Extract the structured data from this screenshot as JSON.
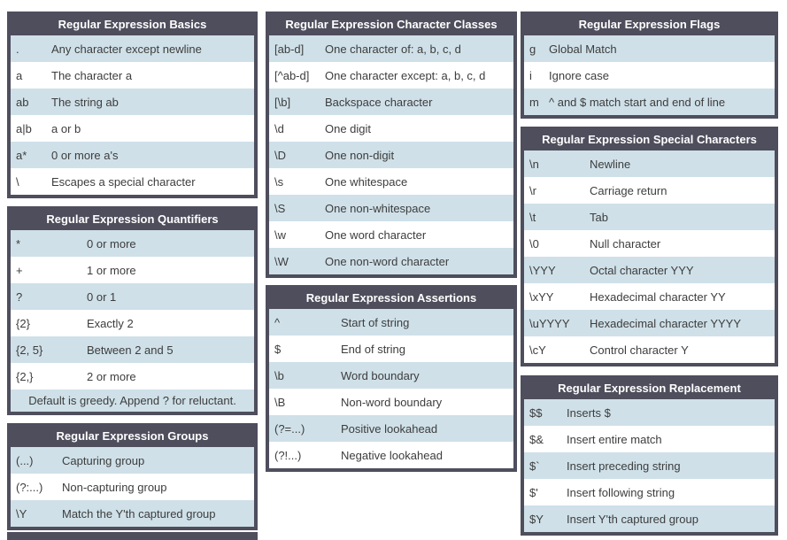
{
  "theme": {
    "header_bg": "#4e4e5d",
    "row_alt_bg": "#cfe0e8",
    "row_bg": "#ffffff",
    "cell_text": "#3d3d3d",
    "header_text": "#ffffff"
  },
  "tables": {
    "basics": {
      "title": "Regular Expression Basics",
      "rows": [
        [
          ".",
          "Any character except newline"
        ],
        [
          "a",
          "The character a"
        ],
        [
          "ab",
          "The string ab"
        ],
        [
          "a|b",
          "a or b"
        ],
        [
          "a*",
          "0 or more a's"
        ],
        [
          "\\",
          "Escapes a special character"
        ]
      ]
    },
    "quantifiers": {
      "title": "Regular Expression Quantifiers",
      "rows": [
        [
          "*",
          "0 or more"
        ],
        [
          "+",
          "1 or more"
        ],
        [
          "?",
          "0 or 1"
        ],
        [
          "{2}",
          "Exactly 2"
        ],
        [
          "{2, 5}",
          "Between 2 and 5"
        ],
        [
          "{2,}",
          "2 or more"
        ]
      ],
      "footer": "Default is greedy. Append ? for reluctant."
    },
    "groups": {
      "title": "Regular Expression Groups",
      "rows": [
        [
          "(...)",
          "Capturing group"
        ],
        [
          "(?:...)",
          "Non-capturing group"
        ],
        [
          "\\Y",
          "Match the Y'th captured group"
        ]
      ]
    },
    "char_classes": {
      "title": "Regular Expression Character Classes",
      "rows": [
        [
          "[ab-d]",
          "One character of: a, b, c, d"
        ],
        [
          "[^ab-d]",
          "One character except: a, b, c, d"
        ],
        [
          "[\\b]",
          "Backspace character"
        ],
        [
          "\\d",
          "One digit"
        ],
        [
          "\\D",
          "One non-digit"
        ],
        [
          "\\s",
          "One whitespace"
        ],
        [
          "\\S",
          "One non-whitespace"
        ],
        [
          "\\w",
          "One word character"
        ],
        [
          "\\W",
          "One non-word character"
        ]
      ]
    },
    "assertions": {
      "title": "Regular Expression Assertions",
      "rows": [
        [
          "^",
          "Start of string"
        ],
        [
          "$",
          "End of string"
        ],
        [
          "\\b",
          "Word boundary"
        ],
        [
          "\\B",
          "Non-word boundary"
        ],
        [
          "(?=...)",
          "Positive lookahead"
        ],
        [
          "(?!...)",
          "Negative lookahead"
        ]
      ]
    },
    "flags": {
      "title": "Regular Expression Flags",
      "rows": [
        [
          "g",
          "Global Match"
        ],
        [
          "i",
          "Ignore case"
        ],
        [
          "m",
          "^ and $ match start and end of line"
        ]
      ]
    },
    "special_chars": {
      "title": "Regular Expression Special Characters",
      "rows": [
        [
          "\\n",
          "Newline"
        ],
        [
          "\\r",
          "Carriage return"
        ],
        [
          "\\t",
          "Tab"
        ],
        [
          "\\0",
          "Null character"
        ],
        [
          "\\YYY",
          "Octal character YYY"
        ],
        [
          "\\xYY",
          "Hexadecimal character YY"
        ],
        [
          "\\uYYYY",
          "Hexadecimal character YYYY"
        ],
        [
          "\\cY",
          "Control character Y"
        ]
      ]
    },
    "replacement": {
      "title": "Regular Expression Replacement",
      "rows": [
        [
          "$$",
          "Inserts $"
        ],
        [
          "$&",
          "Insert entire match"
        ],
        [
          "$`",
          "Insert preceding string"
        ],
        [
          "$'",
          "Insert following string"
        ],
        [
          "$Y",
          "Insert Y'th captured group"
        ]
      ]
    }
  }
}
